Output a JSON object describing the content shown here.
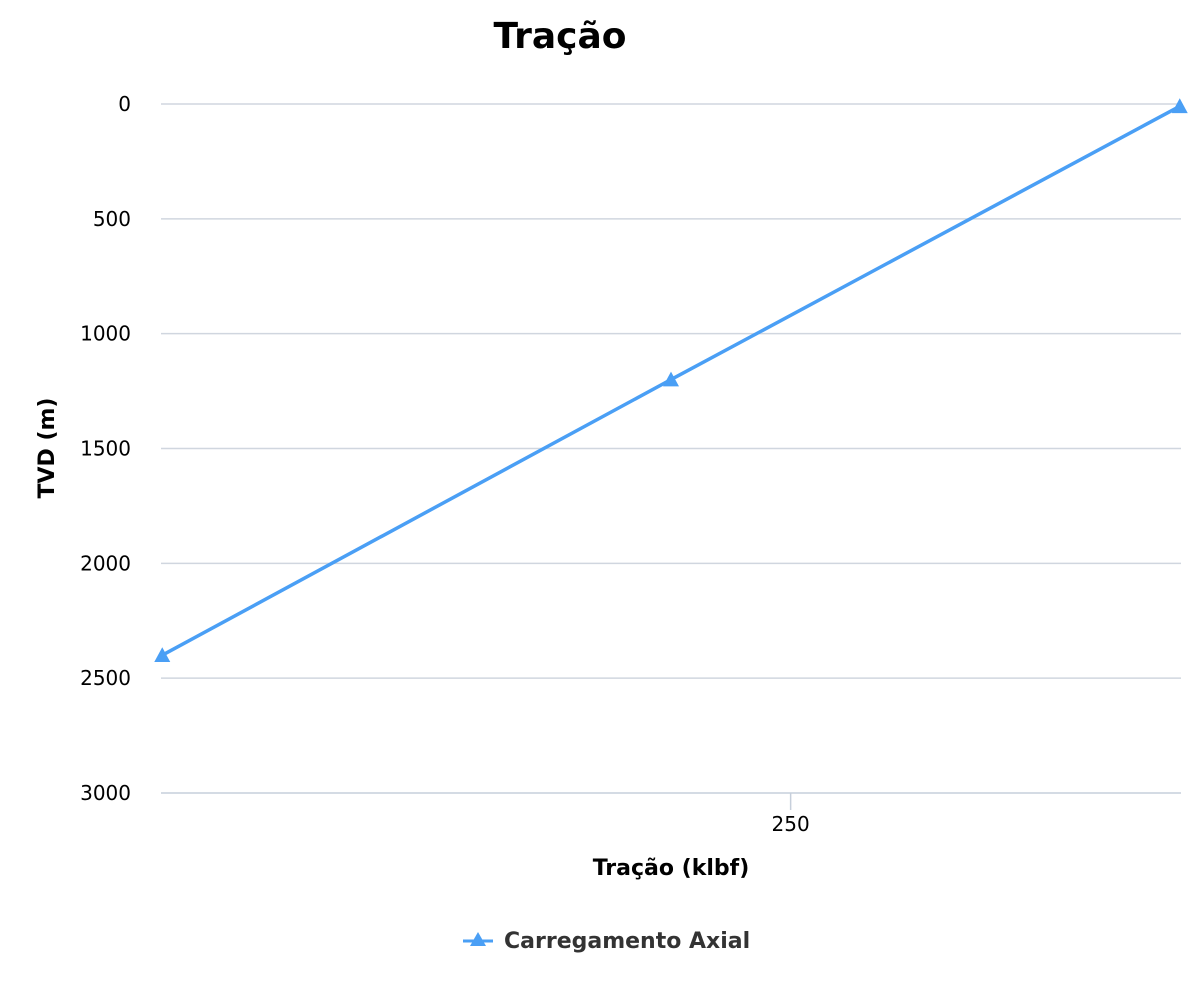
{
  "chart_data": {
    "type": "line",
    "title": "Tração",
    "xlabel": "Tração (klbf)",
    "ylabel": "TVD (m)",
    "x_ticks": [
      250
    ],
    "y_ticks": [
      0,
      500,
      1000,
      1500,
      2000,
      2500,
      3000
    ],
    "xlim": [
      200,
      281
    ],
    "ylim": [
      0,
      3000
    ],
    "y_inverted": true,
    "grid": "horizontal",
    "legend_position": "bottom-center",
    "series": [
      {
        "name": "Carregamento Axial",
        "color": "#4a9ff5",
        "marker": "triangle",
        "x": [
          200.1,
          240.5,
          280.9
        ],
        "y": [
          2400,
          1200,
          10
        ]
      }
    ]
  }
}
